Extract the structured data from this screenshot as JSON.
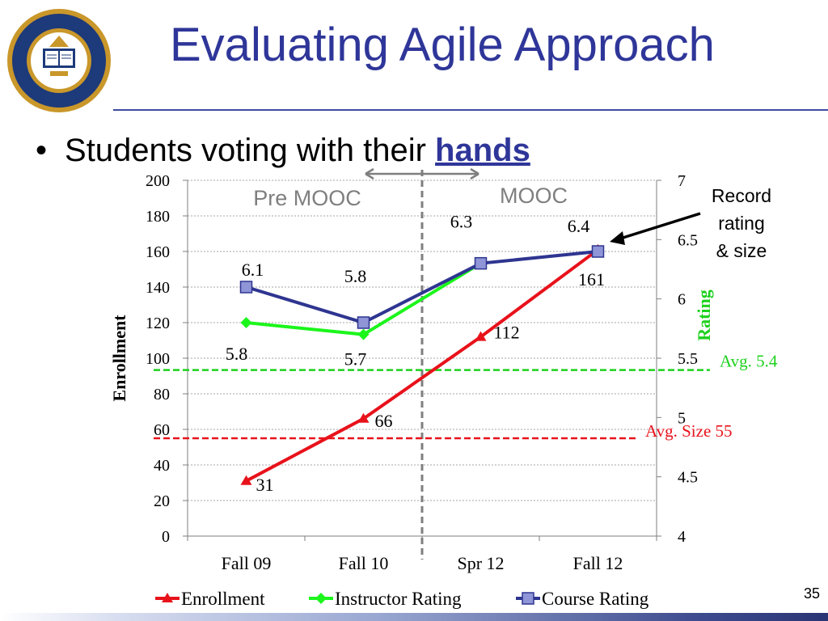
{
  "slide": {
    "title": "Evaluating Agile Approach",
    "bullet_prefix": "Students voting with their ",
    "bullet_emph": "hands",
    "page_number": "35",
    "seal_text": "THE UNIVERSITY OF CALIFORNIA BERKELEY 1868"
  },
  "chart_data": {
    "type": "line",
    "categories": [
      "Fall 09",
      "Fall 10",
      "Spr 12",
      "Fall 12"
    ],
    "y_left": {
      "label": "Enrollment",
      "range": [
        0,
        200
      ],
      "ticks": [
        "0",
        "20",
        "40",
        "60",
        "80",
        "100",
        "120",
        "140",
        "160",
        "180",
        "200"
      ]
    },
    "y_right": {
      "label": "Rating",
      "range": [
        4,
        7
      ],
      "ticks": [
        "4",
        "4.5",
        "5",
        "5.5",
        "6",
        "6.5",
        "7"
      ]
    },
    "series": [
      {
        "name": "Enrollment",
        "axis": "left",
        "values": [
          31,
          66,
          112,
          161
        ],
        "labels": [
          "31",
          "66",
          "112",
          "161"
        ],
        "color": "#e8121b"
      },
      {
        "name": "Instructor Rating",
        "axis": "right",
        "values": [
          5.8,
          5.7,
          6.3,
          null
        ],
        "labels": [
          "5.8",
          "5.7",
          "",
          ""
        ],
        "color": "#1cf51c"
      },
      {
        "name": "Course Rating",
        "axis": "right",
        "values": [
          6.1,
          5.8,
          6.3,
          6.4
        ],
        "labels": [
          "6.1",
          "5.8",
          "6.3",
          "6.4"
        ],
        "color": "#2e3590"
      }
    ],
    "reference_lines": [
      {
        "label": "Avg. 5.4",
        "axis": "right",
        "value": 5.4,
        "color": "#1cd11c"
      },
      {
        "label": "Avg. Size 55",
        "axis": "left",
        "value": 55,
        "color": "#e8121b"
      }
    ],
    "divider": {
      "between": [
        "Fall 10",
        "Spr 12"
      ]
    },
    "regions": [
      "Pre MOOC",
      "MOOC"
    ],
    "annotation": [
      "Record",
      "rating",
      "& size"
    ],
    "grid": true,
    "legend": "bottom"
  }
}
